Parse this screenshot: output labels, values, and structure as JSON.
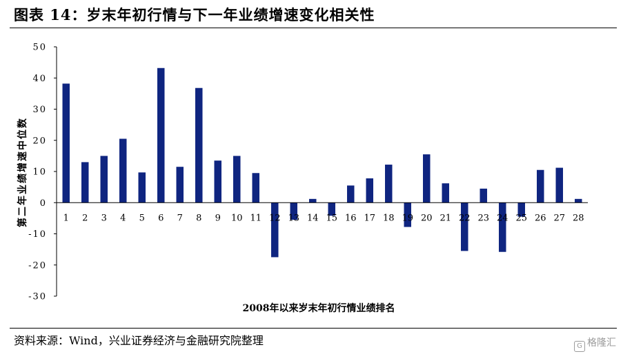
{
  "header": {
    "title": "图表 14：岁末年初行情与下一年业绩增速变化相关性"
  },
  "footer": {
    "source": "资料来源：Wind，兴业证券经济与金融研究院整理"
  },
  "watermark": {
    "text": "格隆汇",
    "icon": "gelonghui-logo-icon",
    "color": "#9a9a9a"
  },
  "chart_data": {
    "type": "bar",
    "title": "",
    "xlabel": "2008年以来岁末年初行情业绩排名",
    "ylabel": "第二年业绩增速中位数",
    "ylim": [
      -30,
      50
    ],
    "yticks": [
      50,
      40,
      30,
      20,
      10,
      0,
      -10,
      -20,
      -30
    ],
    "yticklabels": [
      "50",
      "40",
      "30",
      "20",
      "10",
      "0",
      "-10",
      "-20",
      "-30"
    ],
    "grid": false,
    "legend": "none",
    "bar_color": "#0f2580",
    "categories": [
      "1",
      "2",
      "3",
      "4",
      "5",
      "6",
      "7",
      "8",
      "9",
      "10",
      "11",
      "12",
      "13",
      "14",
      "15",
      "16",
      "17",
      "18",
      "19",
      "20",
      "21",
      "22",
      "23",
      "24",
      "25",
      "26",
      "27",
      "28"
    ],
    "series": [
      {
        "values": [
          38.2,
          13,
          15,
          20.5,
          9.7,
          43.2,
          11.5,
          36.8,
          13.5,
          15,
          9.5,
          -17.5,
          -5.5,
          1.2,
          -4.2,
          5.5,
          7.8,
          12.2,
          -7.8,
          15.5,
          6.2,
          -15.5,
          4.5,
          -15.8,
          -4.5,
          10.5,
          11.2,
          1.2
        ]
      }
    ]
  }
}
